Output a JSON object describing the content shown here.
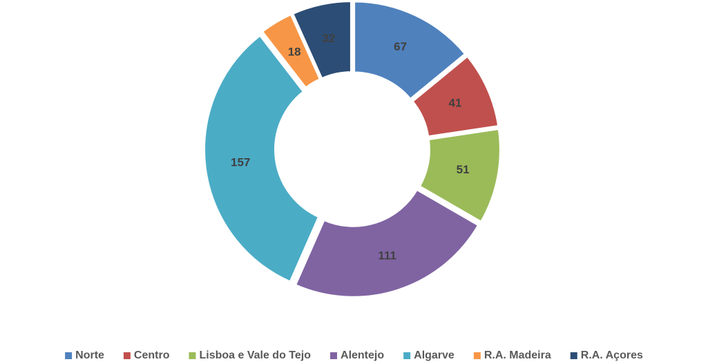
{
  "chart_data": {
    "type": "donut",
    "categories": [
      "Norte",
      "Centro",
      "Lisboa e Vale do Tejo",
      "Alentejo",
      "Algarve",
      "R.A. Madeira",
      "R.A. Açores"
    ],
    "values": [
      67,
      41,
      51,
      111,
      157,
      18,
      32
    ],
    "colors": [
      "#4f81bd",
      "#c0504d",
      "#9bbb59",
      "#8064a2",
      "#4bacc6",
      "#f79646",
      "#2c4d75"
    ],
    "legend": "bottom"
  }
}
